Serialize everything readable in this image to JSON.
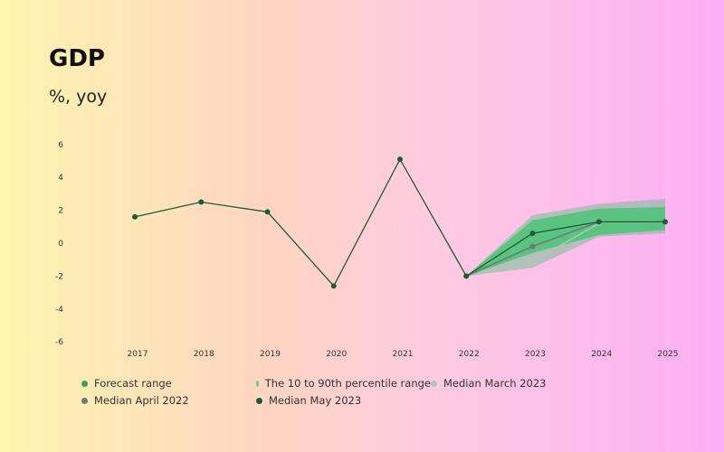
{
  "title": "GDP",
  "subtitle": "%, yoy",
  "colors": {
    "forecast_range": "#5bbf85",
    "percentile_range": "#3ec46d",
    "median_march_2023": "#a8c8b8",
    "median_april_2022": "#6b7d74",
    "median_may_2023": "#1d5c36"
  },
  "legend": [
    {
      "label": "Forecast range",
      "color": "#3a9e5e"
    },
    {
      "label": "The 10 to 90th percentile range",
      "color": "#5fd08a"
    },
    {
      "label": "Median March 2023",
      "color": "#a8c8b8"
    },
    {
      "label": "Median April 2022",
      "color": "#6b7d74"
    },
    {
      "label": "Median May 2023",
      "color": "#1d5c36"
    }
  ],
  "chart_data": {
    "type": "line",
    "x": [
      2017,
      2018,
      2019,
      2020,
      2021,
      2022,
      2023,
      2024,
      2025
    ],
    "ylim": [
      -6,
      6
    ],
    "yticks": [
      6,
      4,
      2,
      0,
      -2,
      -4,
      -6
    ],
    "grid": false,
    "series": [
      {
        "name": "Median May 2023",
        "x": [
          2017,
          2018,
          2019,
          2020,
          2021,
          2022,
          2023,
          2024,
          2025
        ],
        "values": [
          1.6,
          2.5,
          1.9,
          -2.6,
          5.1,
          -2.0,
          0.6,
          1.3,
          1.3
        ]
      },
      {
        "name": "Median April 2022",
        "x": [
          2022,
          2023,
          2024
        ],
        "values": [
          -2.0,
          -0.2,
          1.3
        ]
      },
      {
        "name": "Median March 2023",
        "x": [
          2022,
          2023,
          2024
        ],
        "values": [
          -2.0,
          -1.1,
          1.2
        ]
      }
    ],
    "bands": [
      {
        "name": "Forecast range",
        "x": [
          2022,
          2023,
          2024,
          2025
        ],
        "low": [
          -2.0,
          -1.5,
          0.4,
          0.6
        ],
        "high": [
          -2.0,
          1.7,
          2.4,
          2.7
        ]
      },
      {
        "name": "The 10 to 90th percentile range",
        "x": [
          2022,
          2023,
          2024,
          2025
        ],
        "low": [
          -2.0,
          -0.6,
          0.5,
          0.8
        ],
        "high": [
          -2.0,
          1.4,
          2.1,
          2.2
        ]
      }
    ]
  }
}
